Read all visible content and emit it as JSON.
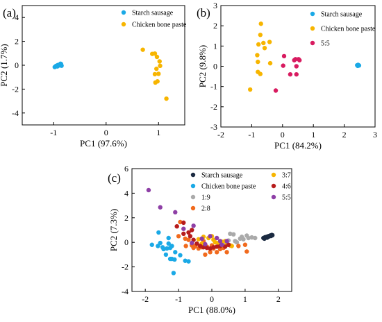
{
  "panel_labels": {
    "a": "(a)",
    "b": "(b)",
    "c": "(c)"
  },
  "chart_data": [
    {
      "id": "a",
      "type": "scatter",
      "xlabel": "PC1 (97.6%)",
      "ylabel": "PC2 (1.7%)",
      "xlim": [
        -1.6,
        1.5
      ],
      "ylim": [
        -5,
        5
      ],
      "xticks": [
        -1,
        0,
        1
      ],
      "yticks": [
        -4,
        -2,
        0,
        2,
        4
      ],
      "grid": false,
      "legend": "top-right",
      "series": [
        {
          "name": "Starch sausage",
          "color": "#1aa9e6",
          "points": [
            [
              -0.98,
              -0.15
            ],
            [
              -0.96,
              -0.08
            ],
            [
              -0.95,
              -0.05
            ],
            [
              -0.93,
              -0.1
            ],
            [
              -0.92,
              0.02
            ],
            [
              -0.9,
              -0.02
            ],
            [
              -0.88,
              0.05
            ],
            [
              -0.86,
              0.1
            ],
            [
              -0.85,
              -0.04
            ],
            [
              -0.87,
              0.13
            ]
          ]
        },
        {
          "name": "Chicken bone paste",
          "color": "#f7b500",
          "points": [
            [
              0.7,
              1.3
            ],
            [
              0.88,
              0.95
            ],
            [
              0.93,
              0.98
            ],
            [
              0.97,
              0.7
            ],
            [
              1.02,
              0.32
            ],
            [
              1.03,
              -0.05
            ],
            [
              0.96,
              -0.3
            ],
            [
              0.93,
              -0.75
            ],
            [
              1.0,
              -0.72
            ],
            [
              0.98,
              -1.35
            ],
            [
              0.94,
              -1.45
            ],
            [
              1.15,
              -2.8
            ]
          ]
        }
      ]
    },
    {
      "id": "b",
      "type": "scatter",
      "xlabel": "PC1 (84.2%)",
      "ylabel": "PC2 (9.8%)",
      "xlim": [
        -2,
        3
      ],
      "ylim": [
        -3,
        3
      ],
      "xticks": [
        -2,
        -1,
        0,
        1,
        2,
        3
      ],
      "yticks": [
        -3,
        -2,
        -1,
        0,
        1,
        2,
        3
      ],
      "grid": false,
      "legend": "top-right",
      "series": [
        {
          "name": "Starch sausage",
          "color": "#1aa9e6",
          "points": [
            [
              2.42,
              0.05
            ],
            [
              2.45,
              0.07
            ],
            [
              2.48,
              0.04
            ],
            [
              2.44,
              0.02
            ]
          ]
        },
        {
          "name": "Chicken bone paste",
          "color": "#f7b500",
          "points": [
            [
              -0.7,
              2.1
            ],
            [
              -0.72,
              1.55
            ],
            [
              -0.58,
              0.9
            ],
            [
              -0.78,
              1.08
            ],
            [
              -0.62,
              1.15
            ],
            [
              -0.42,
              1.2
            ],
            [
              -0.82,
              0.55
            ],
            [
              -0.8,
              0.22
            ],
            [
              -0.4,
              0.15
            ],
            [
              -0.8,
              -0.28
            ],
            [
              -0.72,
              -0.38
            ],
            [
              -1.05,
              -1.15
            ]
          ]
        },
        {
          "name": "5:5",
          "color": "#d81b60",
          "points": [
            [
              0.05,
              0.5
            ],
            [
              0.38,
              0.3
            ],
            [
              0.42,
              0.35
            ],
            [
              0.52,
              0.35
            ],
            [
              0.55,
              0.3
            ],
            [
              0.45,
              0.0
            ],
            [
              0.25,
              -0.4
            ],
            [
              0.45,
              -0.4
            ],
            [
              0.02,
              0.03
            ],
            [
              -0.22,
              -1.2
            ]
          ]
        }
      ]
    },
    {
      "id": "c",
      "type": "scatter",
      "xlabel": "PC1 (88.0%)",
      "ylabel": "PC2 (7.3%)",
      "xlim": [
        -2.4,
        2.4
      ],
      "ylim": [
        -4,
        6
      ],
      "xticks": [
        -2,
        -1,
        0,
        1,
        2
      ],
      "yticks": [
        -4,
        -2,
        0,
        2,
        4,
        6
      ],
      "grid": false,
      "legend": "top-right",
      "series": [
        {
          "name": "Starch sausage",
          "color": "#1b2a41",
          "points": [
            [
              1.55,
              0.35
            ],
            [
              1.6,
              0.42
            ],
            [
              1.65,
              0.45
            ],
            [
              1.7,
              0.5
            ],
            [
              1.72,
              0.48
            ],
            [
              1.75,
              0.55
            ],
            [
              1.78,
              0.52
            ],
            [
              1.8,
              0.6
            ],
            [
              1.82,
              0.58
            ],
            [
              1.66,
              0.38
            ],
            [
              1.58,
              0.3
            ]
          ]
        },
        {
          "name": "Chicken bone paste",
          "color": "#1aa9e6",
          "points": [
            [
              -1.6,
              0.8
            ],
            [
              -1.8,
              -0.2
            ],
            [
              -1.62,
              -0.3
            ],
            [
              -1.55,
              -0.05
            ],
            [
              -1.48,
              -0.4
            ],
            [
              -1.35,
              -0.5
            ],
            [
              -1.3,
              -0.1
            ],
            [
              -1.3,
              0.35
            ],
            [
              -1.25,
              -0.45
            ],
            [
              -1.2,
              -0.3
            ],
            [
              -1.45,
              -0.55
            ],
            [
              -1.38,
              -1.0
            ],
            [
              -1.25,
              -1.35
            ],
            [
              -1.2,
              -1.35
            ],
            [
              -1.12,
              -1.4
            ],
            [
              -1.15,
              -2.5
            ],
            [
              -0.95,
              -1.05
            ],
            [
              -0.8,
              -1.5
            ],
            [
              -0.7,
              -1.55
            ],
            [
              -1.1,
              -0.8
            ]
          ]
        },
        {
          "name": "1:9",
          "color": "#aaaaaa",
          "points": [
            [
              0.4,
              -0.1
            ],
            [
              0.5,
              0.15
            ],
            [
              0.55,
              0.7
            ],
            [
              0.65,
              0.65
            ],
            [
              0.75,
              0.0
            ],
            [
              0.85,
              0.3
            ],
            [
              0.9,
              0.45
            ],
            [
              0.95,
              0.25
            ],
            [
              1.05,
              0.55
            ],
            [
              1.1,
              0.35
            ],
            [
              1.2,
              0.4
            ],
            [
              1.3,
              0.35
            ],
            [
              0.7,
              0.1
            ]
          ]
        },
        {
          "name": "2:8",
          "color": "#f16a1d",
          "points": [
            [
              -0.95,
              1.65
            ],
            [
              -1.0,
              0.5
            ],
            [
              -0.8,
              0.3
            ],
            [
              -0.78,
              -0.3
            ],
            [
              -0.6,
              -0.25
            ],
            [
              -0.55,
              -0.45
            ],
            [
              -0.4,
              -0.5
            ],
            [
              -0.3,
              -0.4
            ],
            [
              -0.25,
              0.1
            ],
            [
              -0.15,
              -0.35
            ],
            [
              -0.05,
              -0.8
            ],
            [
              0.0,
              -0.25
            ],
            [
              0.05,
              -0.5
            ],
            [
              0.15,
              -0.8
            ],
            [
              0.25,
              -0.55
            ],
            [
              0.35,
              -0.45
            ],
            [
              0.45,
              -0.8
            ],
            [
              0.55,
              -0.25
            ],
            [
              0.8,
              -0.3
            ],
            [
              1.0,
              -0.2
            ],
            [
              1.05,
              -0.75
            ],
            [
              -0.2,
              -1.0
            ],
            [
              -0.5,
              -0.3
            ],
            [
              -0.7,
              0.2
            ]
          ]
        },
        {
          "name": "3:7",
          "color": "#f7b500",
          "points": [
            [
              -0.4,
              0.25
            ],
            [
              -0.25,
              0.45
            ],
            [
              -0.1,
              0.35
            ],
            [
              0.05,
              0.2
            ],
            [
              0.1,
              0.0
            ],
            [
              0.2,
              -0.05
            ],
            [
              0.3,
              0.05
            ],
            [
              0.4,
              0.1
            ],
            [
              0.45,
              -0.2
            ],
            [
              0.6,
              -0.3
            ],
            [
              0.0,
              0.5
            ],
            [
              -0.3,
              -0.1
            ]
          ]
        },
        {
          "name": "4:6",
          "color": "#b71c1c",
          "points": [
            [
              -1.05,
              1.3
            ],
            [
              -0.85,
              1.6
            ],
            [
              -0.7,
              0.8
            ],
            [
              -0.65,
              0.5
            ],
            [
              -0.55,
              0.2
            ],
            [
              -0.45,
              -0.1
            ],
            [
              -0.35,
              -0.3
            ],
            [
              -0.25,
              -0.4
            ],
            [
              -0.15,
              -0.45
            ],
            [
              -0.05,
              -0.5
            ],
            [
              0.05,
              -0.4
            ],
            [
              0.15,
              -0.35
            ],
            [
              0.25,
              -0.3
            ],
            [
              0.4,
              -0.35
            ],
            [
              0.5,
              -0.2
            ],
            [
              -0.85,
              0.7
            ],
            [
              -0.6,
              1.0
            ]
          ]
        },
        {
          "name": "5:5",
          "color": "#8e3fa6",
          "points": [
            [
              -1.9,
              4.25
            ],
            [
              -1.55,
              2.85
            ],
            [
              -1.1,
              2.45
            ],
            [
              -0.85,
              1.1
            ],
            [
              -0.55,
              1.35
            ],
            [
              -0.3,
              0.3
            ],
            [
              -0.05,
              0.5
            ],
            [
              0.15,
              0.35
            ],
            [
              0.25,
              0.1
            ],
            [
              0.45,
              0.1
            ],
            [
              -0.6,
              -0.05
            ],
            [
              -0.2,
              -0.15
            ],
            [
              0.3,
              -0.2
            ]
          ]
        }
      ]
    }
  ]
}
